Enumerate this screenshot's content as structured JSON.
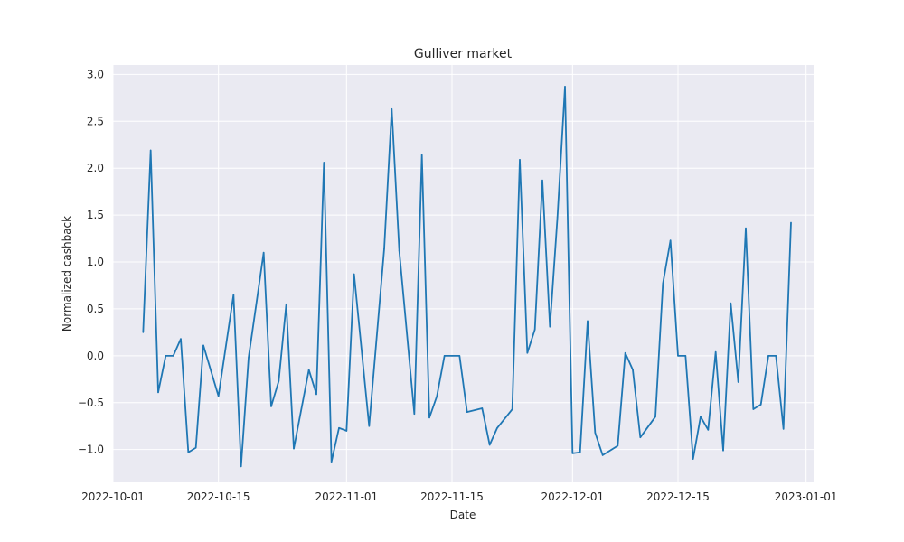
{
  "chart_data": {
    "type": "line",
    "title": "Gulliver market",
    "xlabel": "Date",
    "ylabel": "Normalized cashback",
    "xlim": [
      "2022-10-01",
      "2023-01-02"
    ],
    "ylim": [
      -1.35,
      3.1
    ],
    "x_ticks": [
      "2022-10-01",
      "2022-10-15",
      "2022-11-01",
      "2022-11-15",
      "2022-12-01",
      "2022-12-15",
      "2023-01-01"
    ],
    "y_ticks": [
      -1.0,
      -0.5,
      0.0,
      0.5,
      1.0,
      1.5,
      2.0,
      2.5,
      3.0
    ],
    "y_tick_labels": [
      "−1.0",
      "−0.5",
      "0.0",
      "0.5",
      "1.0",
      "1.5",
      "2.0",
      "2.5",
      "3.0"
    ],
    "grid": true,
    "background": "#eaeaf2",
    "grid_color": "#ffffff",
    "series": [
      {
        "color": "#1f77b4",
        "x": [
          "2022-10-05",
          "2022-10-06",
          "2022-10-07",
          "2022-10-08",
          "2022-10-09",
          "2022-10-10",
          "2022-10-11",
          "2022-10-12",
          "2022-10-13",
          "2022-10-15",
          "2022-10-17",
          "2022-10-18",
          "2022-10-19",
          "2022-10-21",
          "2022-10-22",
          "2022-10-23",
          "2022-10-24",
          "2022-10-25",
          "2022-10-27",
          "2022-10-28",
          "2022-10-29",
          "2022-10-30",
          "2022-10-31",
          "2022-11-01",
          "2022-11-02",
          "2022-11-04",
          "2022-11-06",
          "2022-11-07",
          "2022-11-08",
          "2022-11-10",
          "2022-11-11",
          "2022-11-12",
          "2022-11-13",
          "2022-11-14",
          "2022-11-15",
          "2022-11-16",
          "2022-11-17",
          "2022-11-19",
          "2022-11-20",
          "2022-11-21",
          "2022-11-23",
          "2022-11-24",
          "2022-11-25",
          "2022-11-26",
          "2022-11-27",
          "2022-11-28",
          "2022-11-29",
          "2022-11-30",
          "2022-12-01",
          "2022-12-02",
          "2022-12-03",
          "2022-12-04",
          "2022-12-05",
          "2022-12-07",
          "2022-12-08",
          "2022-12-09",
          "2022-12-10",
          "2022-12-12",
          "2022-12-13",
          "2022-12-14",
          "2022-12-15",
          "2022-12-16",
          "2022-12-17",
          "2022-12-18",
          "2022-12-19",
          "2022-12-20",
          "2022-12-21",
          "2022-12-22",
          "2022-12-23",
          "2022-12-24",
          "2022-12-25",
          "2022-12-26",
          "2022-12-27",
          "2022-12-28",
          "2022-12-29",
          "2022-12-30"
        ],
        "y": [
          0.25,
          2.19,
          -0.39,
          0.0,
          0.0,
          0.18,
          -1.03,
          -0.98,
          0.11,
          -0.43,
          0.65,
          -1.18,
          -0.02,
          1.1,
          -0.54,
          -0.27,
          0.55,
          -0.99,
          -0.15,
          -0.41,
          2.06,
          -1.13,
          -0.77,
          -0.8,
          0.87,
          -0.75,
          1.14,
          2.63,
          1.12,
          -0.62,
          2.14,
          -0.66,
          -0.43,
          0.0,
          0.0,
          0.0,
          -0.6,
          -0.56,
          -0.95,
          -0.77,
          -0.57,
          2.09,
          0.03,
          0.28,
          1.87,
          0.31,
          1.48,
          2.87,
          -1.04,
          -1.03,
          0.37,
          -0.82,
          -1.06,
          -0.96,
          0.03,
          -0.15,
          -0.87,
          -0.65,
          0.77,
          1.23,
          0.0,
          0.0,
          -1.1,
          -0.65,
          -0.79,
          0.04,
          -1.01,
          0.56,
          -0.28,
          1.36,
          -0.57,
          -0.52,
          0.0,
          0.0,
          -0.78,
          1.42
        ]
      }
    ]
  }
}
